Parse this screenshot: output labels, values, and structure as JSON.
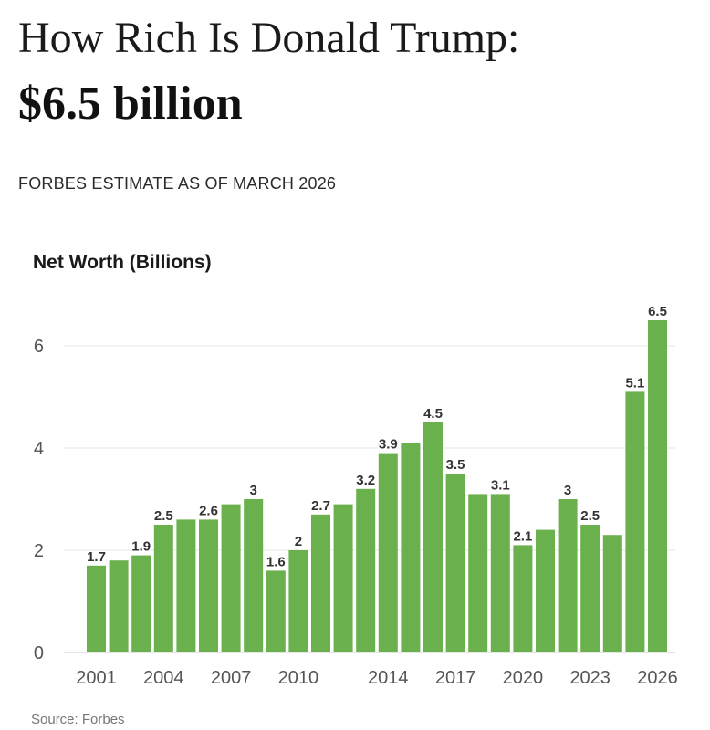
{
  "header": {
    "title": "How Rich Is Donald Trump:",
    "headline_value": "$6.5 billion",
    "subtitle": "FORBES ESTIMATE AS OF MARCH 2026"
  },
  "source": "Source: Forbes",
  "colors": {
    "bar": "#6ab04c",
    "grid": "#e6e6e6",
    "axis": "#cccccc"
  },
  "chart_data": {
    "type": "bar",
    "ylabel": "Net Worth (Billions)",
    "xlabel": "",
    "categories": [
      "2001",
      "2002",
      "2003",
      "2004",
      "2005",
      "2006",
      "2007",
      "2008",
      "2009",
      "2010",
      "2011",
      "2012",
      "2013",
      "2014",
      "2015",
      "2016",
      "2017",
      "2018",
      "2019",
      "2020",
      "2021",
      "2022",
      "2023",
      "2024",
      "2025",
      "2026"
    ],
    "values": [
      1.7,
      1.8,
      1.9,
      2.5,
      2.6,
      2.6,
      2.9,
      3,
      1.6,
      2,
      2.7,
      2.9,
      3.2,
      3.9,
      4.1,
      4.5,
      3.5,
      3.1,
      3.1,
      2.1,
      2.4,
      3,
      2.5,
      2.3,
      5.1,
      6.5
    ],
    "data_labels": [
      "1.7",
      "",
      "1.9",
      "2.5",
      "",
      "2.6",
      "",
      "3",
      "1.6",
      "2",
      "2.7",
      "",
      "3.2",
      "3.9",
      "",
      "4.5",
      "3.5",
      "",
      "3.1",
      "2.1",
      "",
      "3",
      "2.5",
      "",
      "5.1",
      "6.5"
    ],
    "x_tick_labels": [
      "2001",
      "2004",
      "2007",
      "2010",
      "2014",
      "2017",
      "2020",
      "2023",
      "2026"
    ],
    "y_ticks": [
      0,
      2,
      4,
      6
    ],
    "ylim": [
      0,
      7
    ],
    "grid": true,
    "legend": "none"
  }
}
